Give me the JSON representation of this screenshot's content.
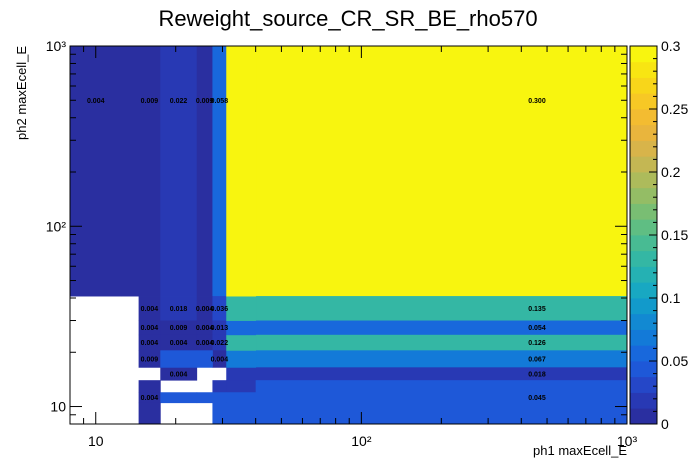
{
  "chart_data": {
    "type": "heatmap",
    "title": "Reweight_source_CR_SR_BE_rho570",
    "xlabel": "ph1 maxEcell_E",
    "ylabel": "ph2 maxEcell_E",
    "x_scale": "log",
    "y_scale": "log",
    "xlim": [
      8,
      1000
    ],
    "ylim": [
      8,
      1000
    ],
    "x_ticks": [
      {
        "v": 10,
        "label": "10"
      },
      {
        "v": 100,
        "label": "10²"
      },
      {
        "v": 1000,
        "label": "10³"
      }
    ],
    "y_ticks": [
      {
        "v": 10,
        "label": "10"
      },
      {
        "v": 100,
        "label": "10²"
      },
      {
        "v": 1000,
        "label": "10³"
      }
    ],
    "x_edges": [
      8,
      12.5,
      14.5,
      17.5,
      24,
      27.5,
      31,
      40,
      1000
    ],
    "y_edges": [
      8,
      10.5,
      12,
      14,
      16.5,
      20.5,
      25,
      30,
      41,
      1000
    ],
    "z_range": [
      0,
      0.3
    ],
    "colorbar_ticks": [
      {
        "v": 0,
        "label": "0"
      },
      {
        "v": 0.05,
        "label": "0.05"
      },
      {
        "v": 0.1,
        "label": "0.1"
      },
      {
        "v": 0.15,
        "label": "0.15"
      },
      {
        "v": 0.2,
        "label": "0.2"
      },
      {
        "v": 0.25,
        "label": "0.25"
      },
      {
        "v": 0.3,
        "label": "0.3"
      }
    ],
    "cells": [
      {
        "xi": 0,
        "yi": 8,
        "value": 0.004,
        "label": "0.004"
      },
      {
        "xi": 2,
        "yi": 8,
        "value": 0.009,
        "label": "0.009"
      },
      {
        "xi": 3,
        "yi": 8,
        "value": 0.022,
        "label": "0.022"
      },
      {
        "xi": 4,
        "yi": 8,
        "value": 0.009,
        "label": "0.009"
      },
      {
        "xi": 5,
        "yi": 8,
        "value": 0.058,
        "label": "0.058"
      },
      {
        "xi": 7,
        "yi": 8,
        "value": 0.3,
        "label": "0.300"
      },
      {
        "xi": 2,
        "yi": 7,
        "value": 0.004,
        "label": "0.004"
      },
      {
        "xi": 3,
        "yi": 7,
        "value": 0.018,
        "label": "0.018"
      },
      {
        "xi": 4,
        "yi": 7,
        "value": 0.004,
        "label": "0.004"
      },
      {
        "xi": 5,
        "yi": 7,
        "value": 0.036,
        "label": "0.036"
      },
      {
        "xi": 7,
        "yi": 7,
        "value": 0.135,
        "label": "0.135"
      },
      {
        "xi": 2,
        "yi": 6,
        "value": 0.004,
        "label": "0.004"
      },
      {
        "xi": 3,
        "yi": 6,
        "value": 0.009,
        "label": "0.009"
      },
      {
        "xi": 4,
        "yi": 6,
        "value": 0.004,
        "label": "0.004"
      },
      {
        "xi": 5,
        "yi": 6,
        "value": 0.013,
        "label": "0.013"
      },
      {
        "xi": 7,
        "yi": 6,
        "value": 0.054,
        "label": "0.054"
      },
      {
        "xi": 2,
        "yi": 5,
        "value": 0.004,
        "label": "0.004"
      },
      {
        "xi": 3,
        "yi": 5,
        "value": 0.004,
        "label": "0.004"
      },
      {
        "xi": 4,
        "yi": 5,
        "value": 0.004,
        "label": "0.004"
      },
      {
        "xi": 5,
        "yi": 5,
        "value": 0.022,
        "label": "0.022"
      },
      {
        "xi": 7,
        "yi": 5,
        "value": 0.126,
        "label": "0.126"
      },
      {
        "xi": 2,
        "yi": 4,
        "value": 0.009,
        "label": "0.009"
      },
      {
        "xi": 5,
        "yi": 4,
        "value": 0.004,
        "label": "0.004"
      },
      {
        "xi": 7,
        "yi": 4,
        "value": 0.067,
        "label": "0.067"
      },
      {
        "xi": 3,
        "yi": 3,
        "value": 0.004,
        "label": "0.004"
      },
      {
        "xi": 7,
        "yi": 3,
        "value": 0.018,
        "label": "0.018"
      },
      {
        "xi": 2,
        "yi": 1,
        "value": 0.004,
        "label": "0.004"
      },
      {
        "xi": 7,
        "yi": 1,
        "value": 0.045,
        "label": "0.045"
      },
      {
        "xi": 2,
        "yi": 2,
        "value": 0.004,
        "label": ""
      },
      {
        "xi": 5,
        "yi": 2,
        "value": 0.022,
        "label": ""
      },
      {
        "xi": 6,
        "yi": 2,
        "value": 0.022,
        "label": ""
      },
      {
        "xi": 6,
        "yi": 3,
        "value": 0.022,
        "label": ""
      },
      {
        "xi": 7,
        "yi": 2,
        "value": 0.045,
        "label": ""
      },
      {
        "xi": 3,
        "yi": 1,
        "value": 0.045,
        "label": ""
      },
      {
        "xi": 4,
        "yi": 1,
        "value": 0.045,
        "label": ""
      },
      {
        "xi": 5,
        "yi": 1,
        "value": 0.045,
        "label": ""
      },
      {
        "xi": 6,
        "yi": 1,
        "value": 0.045,
        "label": ""
      },
      {
        "xi": 2,
        "yi": 0,
        "value": 0.004,
        "label": ""
      },
      {
        "xi": 5,
        "yi": 0,
        "value": 0.045,
        "label": ""
      },
      {
        "xi": 6,
        "yi": 0,
        "value": 0.045,
        "label": ""
      },
      {
        "xi": 7,
        "yi": 0,
        "value": 0.045,
        "label": ""
      },
      {
        "xi": 3,
        "yi": 4,
        "value": 0.045,
        "label": ""
      },
      {
        "xi": 4,
        "yi": 4,
        "value": 0.045,
        "label": ""
      },
      {
        "xi": 6,
        "yi": 4,
        "value": 0.067,
        "label": ""
      },
      {
        "xi": 6,
        "yi": 5,
        "value": 0.126,
        "label": ""
      },
      {
        "xi": 6,
        "yi": 6,
        "value": 0.054,
        "label": ""
      },
      {
        "xi": 6,
        "yi": 7,
        "value": 0.135,
        "label": ""
      },
      {
        "xi": 1,
        "yi": 8,
        "value": 0.004,
        "label": ""
      },
      {
        "xi": 6,
        "yi": 8,
        "value": 0.3,
        "label": ""
      }
    ]
  }
}
